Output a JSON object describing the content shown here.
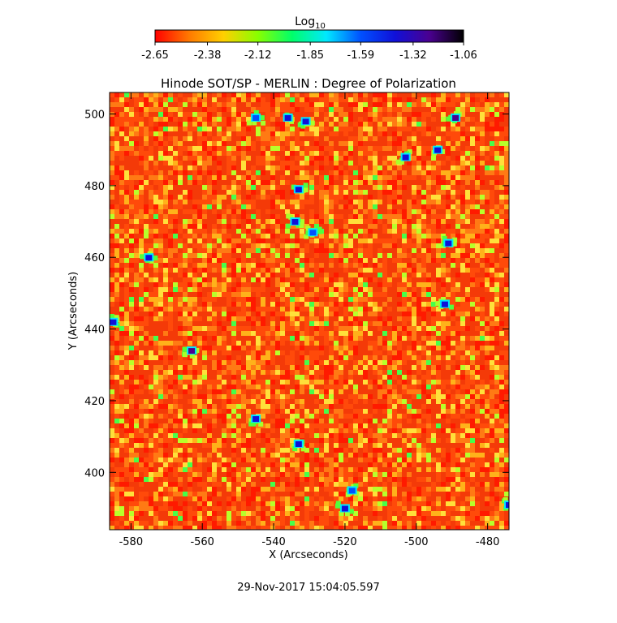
{
  "chart_data": {
    "type": "heatmap",
    "title": "Hinode SOT/SP - MERLIN : Degree of Polarization",
    "xlabel": "X (Arcseconds)",
    "ylabel": "Y (Arcseconds)",
    "xlim": [
      -586,
      -474
    ],
    "ylim": [
      384,
      506
    ],
    "x_ticks": [
      -580,
      -560,
      -540,
      -520,
      -500,
      -480
    ],
    "y_ticks": [
      400,
      420,
      440,
      460,
      480,
      500
    ],
    "colorbar": {
      "label_base": "Log",
      "label_sub": "10",
      "range": [
        -2.65,
        -1.06
      ],
      "tick_values": [
        -2.65,
        -2.38,
        -2.12,
        -1.85,
        -1.59,
        -1.32,
        -1.06
      ],
      "tick_labels": [
        "-2.65",
        "-2.38",
        "-2.12",
        "-1.85",
        "-1.59",
        "-1.32",
        "-1.06"
      ],
      "colors": [
        "#ff0000",
        "#ff7a00",
        "#ffd000",
        "#88ff00",
        "#00ff6a",
        "#00e8ff",
        "#0050ff",
        "#1010d8",
        "#4a0090",
        "#000000"
      ]
    },
    "grid": false,
    "high_value_features": [
      {
        "x": -489,
        "y": 499,
        "value": -1.32
      },
      {
        "x": -494,
        "y": 490,
        "value": -1.4
      },
      {
        "x": -503,
        "y": 488,
        "value": -1.38
      },
      {
        "x": -536,
        "y": 499,
        "value": -1.45
      },
      {
        "x": -545,
        "y": 499,
        "value": -1.55
      },
      {
        "x": -531,
        "y": 498,
        "value": -1.4
      },
      {
        "x": -533,
        "y": 479,
        "value": -1.45
      },
      {
        "x": -534,
        "y": 470,
        "value": -1.5
      },
      {
        "x": -529,
        "y": 467,
        "value": -1.55
      },
      {
        "x": -575,
        "y": 460,
        "value": -1.5
      },
      {
        "x": -491,
        "y": 464,
        "value": -1.4
      },
      {
        "x": -492,
        "y": 447,
        "value": -1.45
      },
      {
        "x": -563,
        "y": 434,
        "value": -1.25
      },
      {
        "x": -585,
        "y": 442,
        "value": -1.5
      },
      {
        "x": -545,
        "y": 415,
        "value": -1.45
      },
      {
        "x": -533,
        "y": 408,
        "value": -1.5
      },
      {
        "x": -518,
        "y": 395,
        "value": -1.6
      },
      {
        "x": -474,
        "y": 391,
        "value": -1.35
      },
      {
        "x": -520,
        "y": 390,
        "value": -1.5
      }
    ]
  },
  "footer": {
    "timestamp": "29-Nov-2017 15:04:05.597"
  }
}
